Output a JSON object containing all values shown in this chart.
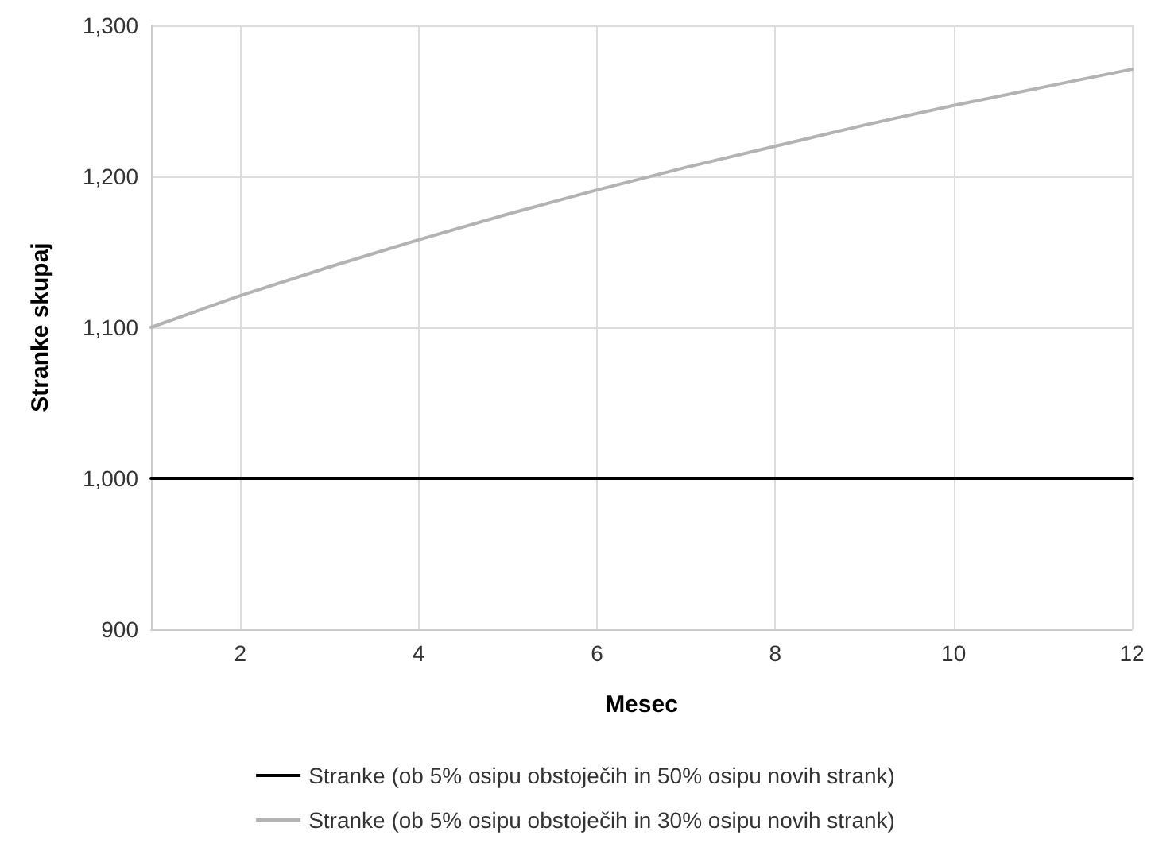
{
  "chart_data": {
    "type": "line",
    "xlabel": "Mesec",
    "ylabel": "Stranke skupaj",
    "x": [
      1,
      2,
      3,
      4,
      5,
      6,
      7,
      8,
      9,
      10,
      11,
      12
    ],
    "series": [
      {
        "name": "Stranke (ob 5% osipu obstoječih in 50% osipu novih strank)",
        "color": "#000000",
        "values": [
          1000,
          1000,
          1000,
          1000,
          1000,
          1000,
          1000,
          1000,
          1000,
          1000,
          1000,
          1000
        ]
      },
      {
        "name": "Stranke (ob 5% osipu obstoječih in 30% osipu novih strank)",
        "color": "#b3b3b3",
        "values": [
          1100,
          1121,
          1140,
          1158,
          1175,
          1191,
          1206,
          1220,
          1234,
          1247,
          1259,
          1271
        ]
      }
    ],
    "xlim": [
      1,
      12
    ],
    "xticks": [
      2,
      4,
      6,
      8,
      10,
      12
    ],
    "ylim": [
      900,
      1300
    ],
    "yticks": [
      {
        "value": 900,
        "label": "900"
      },
      {
        "value": 1000,
        "label": "1,000"
      },
      {
        "value": 1100,
        "label": "1,100"
      },
      {
        "value": 1200,
        "label": "1,200"
      },
      {
        "value": 1300,
        "label": "1,300"
      }
    ],
    "grid": true,
    "legend": "bottom",
    "marker": "none",
    "line_style": "solid"
  }
}
